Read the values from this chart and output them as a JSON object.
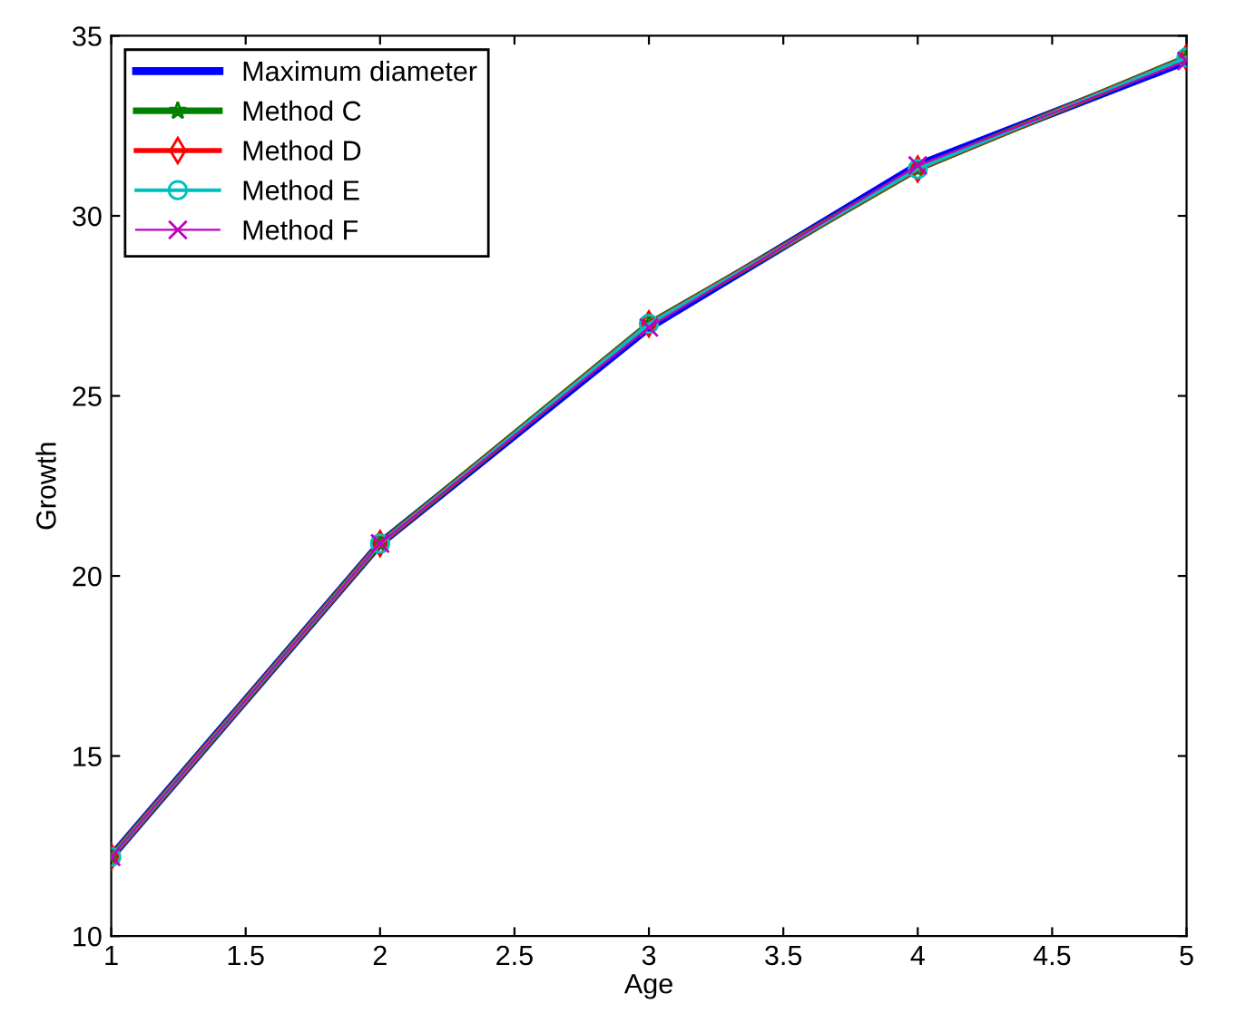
{
  "chart_data": {
    "type": "line",
    "xlabel": "Age",
    "ylabel": "Growth",
    "x": [
      1,
      2,
      3,
      4,
      5
    ],
    "series": [
      {
        "name": "Maximum diameter",
        "color": "#0000ff",
        "marker": "none",
        "values": [
          12.2,
          20.9,
          26.9,
          31.4,
          34.3
        ]
      },
      {
        "name": "Method C",
        "color": "#008000",
        "marker": "star",
        "values": [
          12.2,
          20.9,
          27.0,
          31.3,
          34.4
        ]
      },
      {
        "name": "Method D",
        "color": "#ff0000",
        "marker": "diamond",
        "values": [
          12.2,
          20.9,
          27.0,
          31.3,
          34.4
        ]
      },
      {
        "name": "Method E",
        "color": "#00bfbf",
        "marker": "circle",
        "values": [
          12.2,
          20.9,
          27.0,
          31.3,
          34.4
        ]
      },
      {
        "name": "Method F",
        "color": "#bf00bf",
        "marker": "cross",
        "values": [
          12.2,
          20.9,
          26.9,
          31.4,
          34.3
        ]
      }
    ],
    "xlim": [
      1,
      5
    ],
    "ylim": [
      10,
      35
    ],
    "xticks": [
      1,
      1.5,
      2,
      2.5,
      3,
      3.5,
      4,
      4.5,
      5
    ],
    "yticks": [
      10,
      15,
      20,
      25,
      30,
      35
    ],
    "grid": false,
    "legend": "top left",
    "line_style": "solid"
  }
}
